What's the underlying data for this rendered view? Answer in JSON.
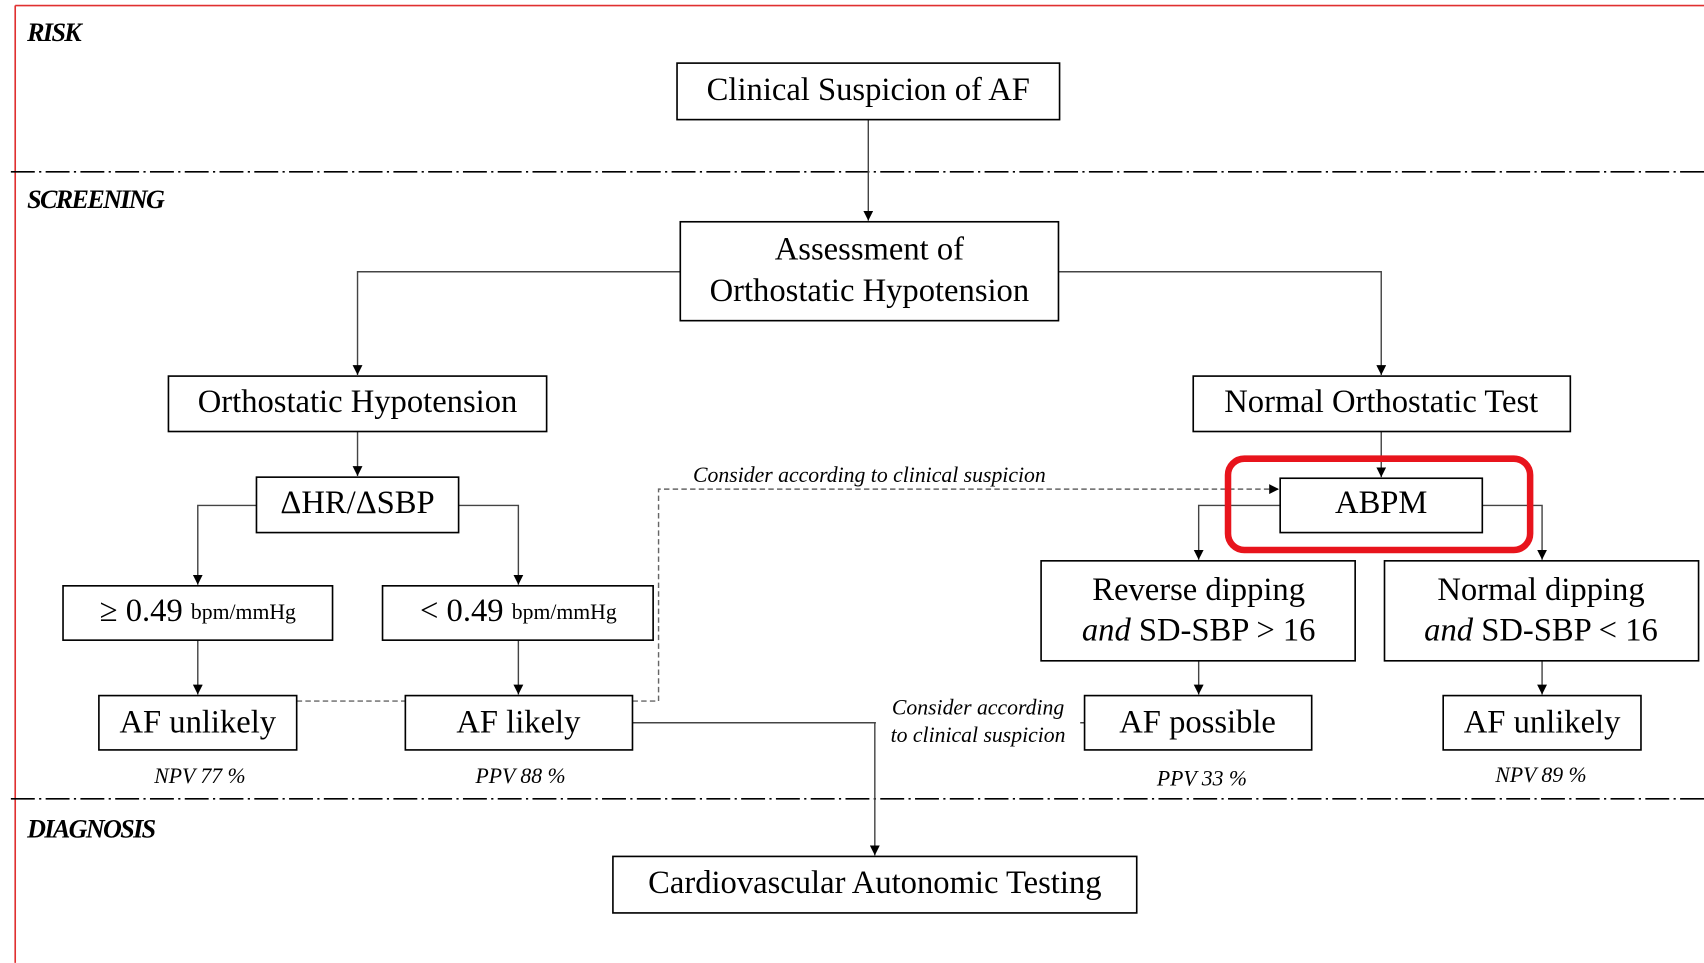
{
  "sections": [
    "RISK",
    "SCREENING",
    "DIAGNOSIS"
  ],
  "nodes": {
    "suspicion": "Clinical Suspicion of AF",
    "assessment": [
      "Assessment of",
      "Orthostatic Hypotension"
    ],
    "oh": "Orthostatic Hypotension",
    "normal_test": "Normal Orthostatic Test",
    "ratio": "ΔHR/ΔSBP",
    "abpm": "ABPM",
    "ge": {
      "value": "≥ 0.49",
      "unit": "bpm/mmHg"
    },
    "lt": {
      "value": "< 0.49",
      "unit": "bpm/mmHg"
    },
    "reverse": {
      "line1": "Reverse dipping",
      "italic": "and",
      "line2": "SD-SBP > 16"
    },
    "normal_dip": {
      "line1": "Normal dipping",
      "italic": "and",
      "line2": "SD-SBP < 16"
    },
    "af_unlikely_1": "AF unlikely",
    "af_likely": "AF likely",
    "af_possible": "AF possible",
    "af_unlikely_2": "AF unlikely",
    "cat": "Cardiovascular Autonomic Testing"
  },
  "stats": [
    "NPV 77 %",
    "PPV 88 %",
    "PPV 33 %",
    "NPV 89 %"
  ],
  "edge_labels": {
    "top": "Consider according to clinical suspicion",
    "bottom": [
      "Consider according",
      "to clinical suspicion"
    ]
  }
}
